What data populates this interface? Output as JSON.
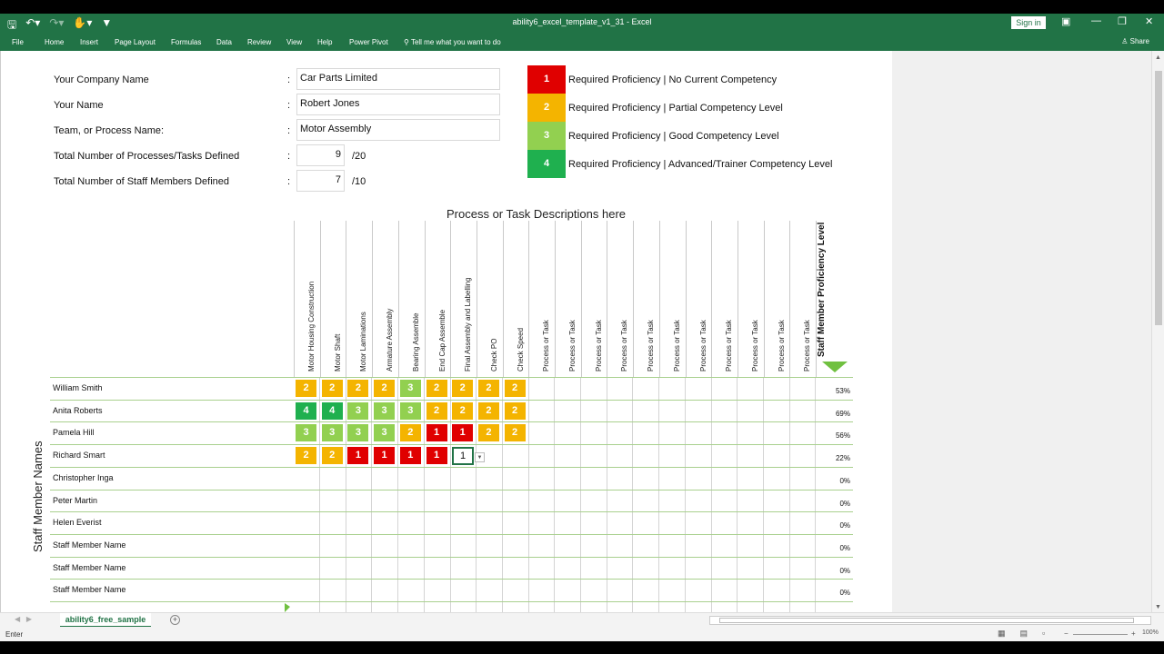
{
  "window": {
    "title": "ability6_excel_template_v1_31  -  Excel",
    "signin": "Sign in",
    "share": "Share"
  },
  "ribbon": {
    "tabs": [
      "File",
      "Home",
      "Insert",
      "Page Layout",
      "Formulas",
      "Data",
      "Review",
      "View",
      "Help",
      "Power Pivot"
    ],
    "tell_me": "Tell me what you want to do"
  },
  "info": {
    "company_label": "Your Company Name",
    "company_value": "Car Parts Limited",
    "name_label": "Your Name",
    "name_value": "Robert Jones",
    "team_label": "Team, or Process Name:",
    "team_value": "Motor Assembly",
    "processes_label": "Total Number of Processes/Tasks Defined",
    "processes_value": "9",
    "processes_max": "/20",
    "staff_label": "Total Number of Staff Members Defined",
    "staff_value": "7",
    "staff_max": "/10",
    "colon": ":"
  },
  "legend": [
    {
      "level": "1",
      "text": "Required Proficiency | No Current Competency",
      "color": "#e00000"
    },
    {
      "level": "2",
      "text": "Required Proficiency | Partial Competency Level",
      "color": "#f4b400"
    },
    {
      "level": "3",
      "text": "Required Proficiency | Good Competency Level",
      "color": "#92d050"
    },
    {
      "level": "4",
      "text": "Required Proficiency | Advanced/Trainer Competency Level",
      "color": "#1fb04f"
    }
  ],
  "matrix": {
    "title": "Process or Task Descriptions here",
    "columns": [
      "Motor Housing Construction",
      "Motor Shaft",
      "Motor Laminations",
      "Armature Assembly",
      "Bearing Assemble",
      "End Cap Assemble",
      "Final Assembly and Labelling",
      "Check PO",
      "Check Speed",
      "Process or Task",
      "Process or Task",
      "Process or Task",
      "Process or Task",
      "Process or Task",
      "Process or Task",
      "Process or Task",
      "Process or Task",
      "Process or Task",
      "Process or Task",
      "Process or Task"
    ],
    "proficiency_header": "Staff Member Proficiency Level",
    "side_label": "Staff Member Names",
    "rows": [
      {
        "name": "William Smith",
        "levels": [
          "2",
          "2",
          "2",
          "2",
          "3",
          "2",
          "2",
          "2",
          "2"
        ],
        "pct": "53%"
      },
      {
        "name": "Anita Roberts",
        "levels": [
          "4",
          "4",
          "3",
          "3",
          "3",
          "2",
          "2",
          "2",
          "2"
        ],
        "pct": "69%"
      },
      {
        "name": "Pamela Hill",
        "levels": [
          "3",
          "3",
          "3",
          "3",
          "2",
          "1",
          "1",
          "2",
          "2"
        ],
        "pct": "56%"
      },
      {
        "name": "Richard Smart",
        "levels": [
          "2",
          "2",
          "1",
          "1",
          "1",
          "1"
        ],
        "pct": "22%"
      },
      {
        "name": "Christopher Inga",
        "levels": [],
        "pct": "0%"
      },
      {
        "name": "Peter Martin",
        "levels": [],
        "pct": "0%"
      },
      {
        "name": "Helen Everist",
        "levels": [],
        "pct": "0%"
      },
      {
        "name": "Staff Member Name",
        "levels": [],
        "pct": "0%"
      },
      {
        "name": "Staff Member Name",
        "levels": [],
        "pct": "0%"
      },
      {
        "name": "Staff Member Name",
        "levels": [],
        "pct": "0%"
      }
    ],
    "editing_value": "1"
  },
  "sheet_tab": "ability6_free_sample",
  "status": {
    "mode": "Enter",
    "zoom": "100%"
  }
}
